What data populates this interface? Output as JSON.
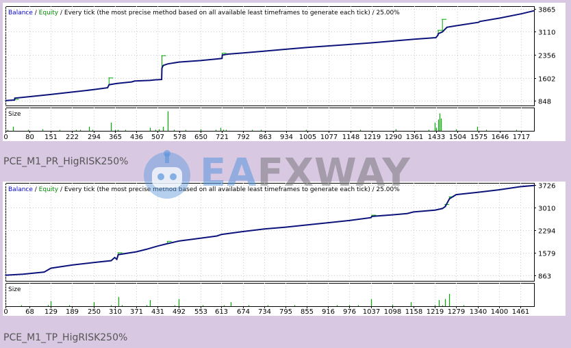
{
  "colors": {
    "balance": "#0b127a",
    "equity": "#00aa00",
    "size_bar": "#00aa00",
    "background": "#d9c8e2",
    "grid": "#cccccc",
    "axis_text": "#000000",
    "legend_balance": "#0000cc",
    "legend_equity": "#008800"
  },
  "watermark": {
    "prefix": "EA",
    "text": "FXWAY",
    "icon": "robot-head-logo-icon"
  },
  "captions": [
    "PCE_M1_PR_HigRISK250%",
    "PCE_M1_TP_HigRISK250%"
  ],
  "chart_data": [
    {
      "type": "line",
      "legend": {
        "balance": "Balance",
        "separator1": " / ",
        "equity": "Equity",
        "rest": " / Every tick (the most precise method based on all available least timeframes to generate each tick) / 25.00%"
      },
      "size_label": "Size",
      "ylim": [
        700,
        3950
      ],
      "yticks": [
        848,
        1602,
        2356,
        3110,
        3865
      ],
      "xlim": [
        0,
        1760
      ],
      "xticks": [
        0,
        80,
        151,
        222,
        294,
        365,
        436,
        507,
        578,
        650,
        721,
        792,
        863,
        934,
        1005,
        1077,
        1148,
        1219,
        1290,
        1361,
        1433,
        1504,
        1575,
        1646,
        1717
      ],
      "series": [
        {
          "name": "Balance",
          "x": [
            0,
            15,
            30,
            31,
            80,
            151,
            222,
            294,
            340,
            345,
            365,
            370,
            400,
            420,
            430,
            480,
            500,
            520,
            521,
            525,
            540,
            578,
            650,
            700,
            721,
            722,
            740,
            792,
            863,
            934,
            1005,
            1077,
            1148,
            1219,
            1290,
            1361,
            1433,
            1440,
            1441,
            1455,
            1470,
            1500,
            1575,
            1580,
            1646,
            1717,
            1760
          ],
          "y": [
            860,
            870,
            880,
            940,
            990,
            1060,
            1140,
            1220,
            1280,
            1380,
            1410,
            1420,
            1450,
            1470,
            1500,
            1520,
            1540,
            1550,
            1920,
            2010,
            2060,
            2120,
            2170,
            2220,
            2240,
            2350,
            2380,
            2420,
            2480,
            2540,
            2600,
            2650,
            2700,
            2750,
            2810,
            2870,
            2920,
            3000,
            3050,
            3110,
            3260,
            3310,
            3420,
            3450,
            3560,
            3700,
            3800
          ]
        },
        {
          "name": "Equity",
          "x": [
            31,
            345,
            521,
            722,
            1441,
            1455
          ],
          "y": [
            900,
            1600,
            2330,
            2410,
            3160,
            3520
          ]
        }
      ],
      "size_bars": {
        "x": [
          6,
          26,
          75,
          122,
          180,
          235,
          248,
          278,
          290,
          350,
          365,
          375,
          400,
          480,
          500,
          510,
          525,
          540,
          560,
          600,
          650,
          700,
          715,
          725,
          735,
          820,
          850,
          1000,
          1180,
          1300,
          1410,
          1430,
          1433,
          1435,
          1440,
          1445,
          1450,
          1500,
          1570,
          1600,
          1700
        ],
        "values": [
          0.05,
          0.2,
          0.05,
          0.08,
          0.05,
          0.05,
          0.05,
          0.2,
          0.05,
          0.4,
          0.05,
          0.05,
          0.05,
          0.15,
          0.05,
          0.08,
          0.2,
          0.95,
          0.05,
          0.05,
          0.08,
          0.05,
          0.15,
          0.05,
          0.05,
          0.05,
          0.05,
          0.05,
          0.05,
          0.08,
          0.05,
          0.4,
          0.1,
          0.15,
          0.55,
          0.85,
          0.6,
          0.08,
          0.2,
          0.05,
          0.05
        ]
      }
    },
    {
      "type": "line",
      "legend": {
        "balance": "Balance",
        "separator1": " / ",
        "equity": "Equity",
        "rest": " / Every tick (the most precise method based on all available least timeframes to generate each tick) / 25.00%"
      },
      "size_label": "Size",
      "ylim": [
        700,
        3800
      ],
      "yticks": [
        863,
        1579,
        2294,
        3010,
        3726
      ],
      "xlim": [
        0,
        1500
      ],
      "xticks": [
        0,
        68,
        129,
        189,
        250,
        310,
        371,
        431,
        492,
        553,
        613,
        674,
        734,
        795,
        855,
        916,
        976,
        1037,
        1098,
        1158,
        1219,
        1279,
        1340,
        1400,
        1461
      ],
      "series": [
        {
          "name": "Balance",
          "x": [
            0,
            50,
            110,
            129,
            189,
            250,
            300,
            310,
            316,
            320,
            371,
            400,
            431,
            460,
            492,
            553,
            600,
            613,
            674,
            734,
            795,
            855,
            916,
            976,
            1037,
            1040,
            1098,
            1140,
            1158,
            1219,
            1240,
            1248,
            1260,
            1279,
            1340,
            1400,
            1461,
            1500
          ],
          "y": [
            880,
            910,
            980,
            1100,
            1200,
            1280,
            1340,
            1440,
            1380,
            1530,
            1620,
            1700,
            1800,
            1880,
            1960,
            2050,
            2120,
            2170,
            2260,
            2340,
            2400,
            2470,
            2540,
            2610,
            2700,
            2740,
            2790,
            2830,
            2880,
            2940,
            2990,
            3050,
            3300,
            3430,
            3500,
            3580,
            3680,
            3720
          ]
        },
        {
          "name": "Equity",
          "x": [
            320,
            460,
            1040,
            1248,
            1260
          ],
          "y": [
            1590,
            1950,
            2780,
            3120,
            3360
          ]
        }
      ],
      "size_bars": {
        "x": [
          45,
          120,
          129,
          180,
          250,
          300,
          320,
          330,
          400,
          410,
          480,
          492,
          560,
          620,
          640,
          690,
          745,
          820,
          940,
          975,
          1000,
          1037,
          1098,
          1150,
          1219,
          1230,
          1240,
          1248,
          1260,
          1300
        ],
        "values": [
          0.05,
          0.05,
          0.25,
          0.05,
          0.2,
          0.05,
          0.45,
          0.05,
          0.05,
          0.3,
          0.05,
          0.35,
          0.05,
          0.05,
          0.2,
          0.05,
          0.05,
          0.05,
          0.05,
          0.05,
          0.05,
          0.35,
          0.08,
          0.2,
          0.05,
          0.3,
          0.05,
          0.35,
          0.6,
          0.05
        ]
      }
    }
  ]
}
